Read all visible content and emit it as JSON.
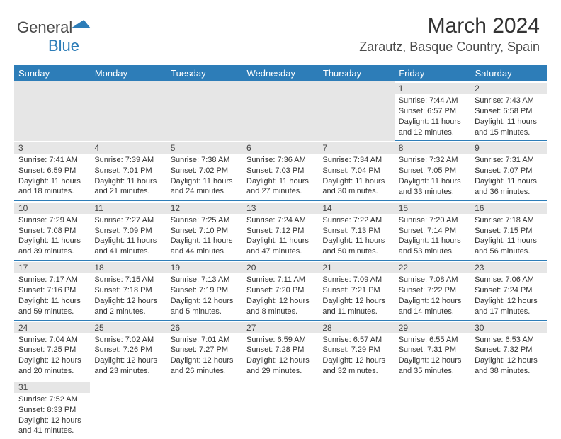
{
  "brand": {
    "part1": "General",
    "part2": "Blue"
  },
  "title": "March 2024",
  "location": "Zarautz, Basque Country, Spain",
  "colors": {
    "header_bg": "#2d7db8",
    "header_text": "#ffffff",
    "daynum_bg": "#e6e6e6",
    "border": "#2d7db8"
  },
  "weekdays": [
    "Sunday",
    "Monday",
    "Tuesday",
    "Wednesday",
    "Thursday",
    "Friday",
    "Saturday"
  ],
  "labels": {
    "sunrise": "Sunrise:",
    "sunset": "Sunset:",
    "daylight": "Daylight:"
  },
  "days": {
    "1": {
      "sunrise": "7:44 AM",
      "sunset": "6:57 PM",
      "daylight": "11 hours and 12 minutes."
    },
    "2": {
      "sunrise": "7:43 AM",
      "sunset": "6:58 PM",
      "daylight": "11 hours and 15 minutes."
    },
    "3": {
      "sunrise": "7:41 AM",
      "sunset": "6:59 PM",
      "daylight": "11 hours and 18 minutes."
    },
    "4": {
      "sunrise": "7:39 AM",
      "sunset": "7:01 PM",
      "daylight": "11 hours and 21 minutes."
    },
    "5": {
      "sunrise": "7:38 AM",
      "sunset": "7:02 PM",
      "daylight": "11 hours and 24 minutes."
    },
    "6": {
      "sunrise": "7:36 AM",
      "sunset": "7:03 PM",
      "daylight": "11 hours and 27 minutes."
    },
    "7": {
      "sunrise": "7:34 AM",
      "sunset": "7:04 PM",
      "daylight": "11 hours and 30 minutes."
    },
    "8": {
      "sunrise": "7:32 AM",
      "sunset": "7:05 PM",
      "daylight": "11 hours and 33 minutes."
    },
    "9": {
      "sunrise": "7:31 AM",
      "sunset": "7:07 PM",
      "daylight": "11 hours and 36 minutes."
    },
    "10": {
      "sunrise": "7:29 AM",
      "sunset": "7:08 PM",
      "daylight": "11 hours and 39 minutes."
    },
    "11": {
      "sunrise": "7:27 AM",
      "sunset": "7:09 PM",
      "daylight": "11 hours and 41 minutes."
    },
    "12": {
      "sunrise": "7:25 AM",
      "sunset": "7:10 PM",
      "daylight": "11 hours and 44 minutes."
    },
    "13": {
      "sunrise": "7:24 AM",
      "sunset": "7:12 PM",
      "daylight": "11 hours and 47 minutes."
    },
    "14": {
      "sunrise": "7:22 AM",
      "sunset": "7:13 PM",
      "daylight": "11 hours and 50 minutes."
    },
    "15": {
      "sunrise": "7:20 AM",
      "sunset": "7:14 PM",
      "daylight": "11 hours and 53 minutes."
    },
    "16": {
      "sunrise": "7:18 AM",
      "sunset": "7:15 PM",
      "daylight": "11 hours and 56 minutes."
    },
    "17": {
      "sunrise": "7:17 AM",
      "sunset": "7:16 PM",
      "daylight": "11 hours and 59 minutes."
    },
    "18": {
      "sunrise": "7:15 AM",
      "sunset": "7:18 PM",
      "daylight": "12 hours and 2 minutes."
    },
    "19": {
      "sunrise": "7:13 AM",
      "sunset": "7:19 PM",
      "daylight": "12 hours and 5 minutes."
    },
    "20": {
      "sunrise": "7:11 AM",
      "sunset": "7:20 PM",
      "daylight": "12 hours and 8 minutes."
    },
    "21": {
      "sunrise": "7:09 AM",
      "sunset": "7:21 PM",
      "daylight": "12 hours and 11 minutes."
    },
    "22": {
      "sunrise": "7:08 AM",
      "sunset": "7:22 PM",
      "daylight": "12 hours and 14 minutes."
    },
    "23": {
      "sunrise": "7:06 AM",
      "sunset": "7:24 PM",
      "daylight": "12 hours and 17 minutes."
    },
    "24": {
      "sunrise": "7:04 AM",
      "sunset": "7:25 PM",
      "daylight": "12 hours and 20 minutes."
    },
    "25": {
      "sunrise": "7:02 AM",
      "sunset": "7:26 PM",
      "daylight": "12 hours and 23 minutes."
    },
    "26": {
      "sunrise": "7:01 AM",
      "sunset": "7:27 PM",
      "daylight": "12 hours and 26 minutes."
    },
    "27": {
      "sunrise": "6:59 AM",
      "sunset": "7:28 PM",
      "daylight": "12 hours and 29 minutes."
    },
    "28": {
      "sunrise": "6:57 AM",
      "sunset": "7:29 PM",
      "daylight": "12 hours and 32 minutes."
    },
    "29": {
      "sunrise": "6:55 AM",
      "sunset": "7:31 PM",
      "daylight": "12 hours and 35 minutes."
    },
    "30": {
      "sunrise": "6:53 AM",
      "sunset": "7:32 PM",
      "daylight": "12 hours and 38 minutes."
    },
    "31": {
      "sunrise": "7:52 AM",
      "sunset": "8:33 PM",
      "daylight": "12 hours and 41 minutes."
    }
  },
  "layout": [
    [
      null,
      null,
      null,
      null,
      null,
      "1",
      "2"
    ],
    [
      "3",
      "4",
      "5",
      "6",
      "7",
      "8",
      "9"
    ],
    [
      "10",
      "11",
      "12",
      "13",
      "14",
      "15",
      "16"
    ],
    [
      "17",
      "18",
      "19",
      "20",
      "21",
      "22",
      "23"
    ],
    [
      "24",
      "25",
      "26",
      "27",
      "28",
      "29",
      "30"
    ],
    [
      "31",
      null,
      null,
      null,
      null,
      null,
      null
    ]
  ]
}
